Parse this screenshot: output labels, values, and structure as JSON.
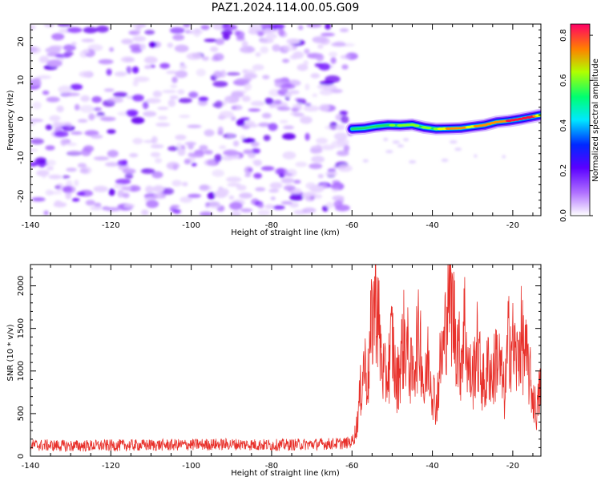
{
  "title": "PAZ1.2024.114.00.05.G09",
  "chart_data": [
    {
      "type": "heatmap",
      "xlabel": "Height of straight line (km)",
      "ylabel": "Frequency (Hz)",
      "xlim": [
        -140,
        -13
      ],
      "ylim": [
        -25,
        24.5
      ],
      "xticks": [
        -140,
        -120,
        -100,
        -80,
        -60,
        -40,
        -20
      ],
      "yticks": [
        -20,
        -10,
        0,
        10,
        20
      ],
      "noise_region_x": [
        -140,
        -60
      ],
      "signal_trace": {
        "x": [
          -60,
          -57,
          -54,
          -51,
          -48,
          -45,
          -42,
          -39,
          -36,
          -33,
          -30,
          -27,
          -24,
          -21,
          -18,
          -15,
          -13
        ],
        "freq": [
          -2.6,
          -2.4,
          -1.9,
          -1.6,
          -1.7,
          -1.5,
          -2.2,
          -2.6,
          -2.5,
          -2.4,
          -2.0,
          -1.6,
          -0.8,
          -0.5,
          0.0,
          0.6,
          1.0
        ],
        "amplitude": [
          0.35,
          0.4,
          0.45,
          0.5,
          0.55,
          0.6,
          0.55,
          0.6,
          0.75,
          0.8,
          0.7,
          0.8,
          0.85,
          0.9,
          0.95,
          0.9,
          0.75
        ]
      },
      "colorbar": {
        "label": "Normalized spectral amplitude",
        "range": [
          0,
          0.85
        ],
        "ticks": [
          "0.0",
          "0.2",
          "0.4",
          "0.6",
          "0.8"
        ]
      }
    },
    {
      "type": "line",
      "xlabel": "Height of straight line (km)",
      "ylabel": "SNR (10 * v/v)",
      "xlim": [
        -140,
        -13
      ],
      "ylim": [
        0,
        2250
      ],
      "xticks": [
        -140,
        -120,
        -100,
        -80,
        -60,
        -40,
        -20
      ],
      "yticks": [
        0,
        500,
        1000,
        1500,
        2000
      ],
      "color": "#e8302a",
      "series": {
        "x": [
          -140,
          -130,
          -120,
          -110,
          -100,
          -90,
          -80,
          -70,
          -62,
          -60,
          -59,
          -58,
          -57,
          -56,
          -55,
          -54,
          -53,
          -52,
          -51,
          -50,
          -49,
          -48,
          -47,
          -46,
          -45,
          -44,
          -43,
          -42,
          -41,
          -40,
          -39,
          -38,
          -37,
          -36,
          -35,
          -34,
          -33,
          -32,
          -31,
          -30,
          -29,
          -28,
          -27,
          -26,
          -25,
          -24,
          -23,
          -22,
          -21,
          -20,
          -19,
          -18,
          -17,
          -16,
          -15,
          -14,
          -13
        ],
        "y": [
          130,
          120,
          125,
          130,
          135,
          140,
          130,
          140,
          150,
          170,
          300,
          700,
          1100,
          900,
          1600,
          1950,
          1300,
          900,
          1000,
          1400,
          800,
          1100,
          1400,
          1200,
          900,
          1300,
          1400,
          700,
          1200,
          800,
          600,
          1100,
          1300,
          2150,
          1700,
          1400,
          1100,
          1600,
          1000,
          900,
          1300,
          1000,
          800,
          1100,
          900,
          1200,
          1000,
          700,
          1400,
          1300,
          1100,
          1400,
          1200,
          1000,
          700,
          500,
          900
        ]
      }
    }
  ]
}
